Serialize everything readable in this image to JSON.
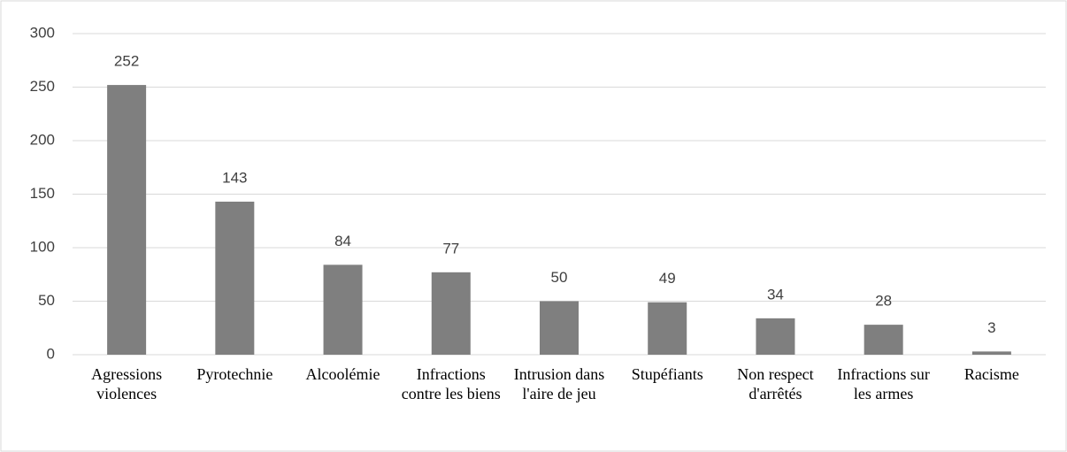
{
  "chart_data": {
    "type": "bar",
    "categories": [
      "Agressions violences",
      "Pyrotechnie",
      "Alcoolémie",
      "Infractions contre les biens",
      "Intrusion dans l'aire de jeu",
      "Stupéfiants",
      "Non respect d'arrêtés",
      "Infractions sur les armes",
      "Racisme"
    ],
    "values": [
      252,
      143,
      84,
      77,
      50,
      49,
      34,
      28,
      3
    ],
    "color": "#7f7f7f",
    "ylim": [
      0,
      300
    ],
    "yticks": [
      0,
      50,
      100,
      150,
      200,
      250,
      300
    ],
    "grid": true
  }
}
